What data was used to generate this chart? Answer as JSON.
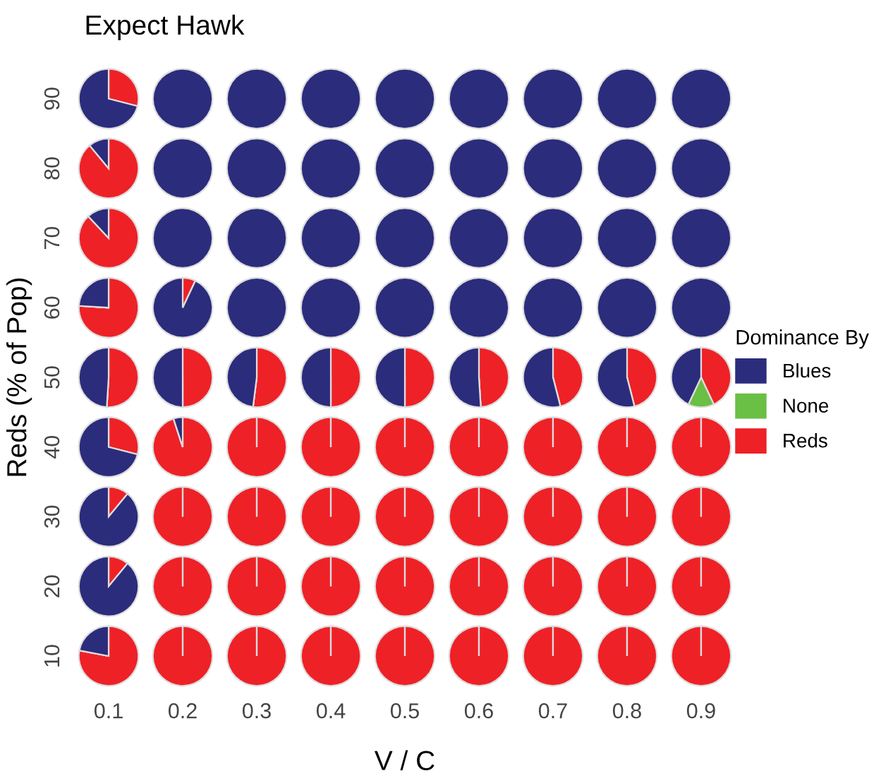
{
  "chart_data": [
    {
      "type": "pie",
      "title": "Expect Hawk",
      "ylabel": "90",
      "annotations": [
        "Reds (% of Pop)"
      ],
      "legend_title": "Dominance By",
      "legend": "right",
      "categories": [
        "Blues",
        "None",
        "Reds"
      ],
      "colors": [
        "#2b2c7c",
        "#6abf45",
        "#ee2127"
      ],
      "series": [
        {
          "values": [
            71,
            0,
            29
          ]
        },
        {
          "values": [
            100,
            0,
            0
          ]
        },
        {
          "values": [
            100,
            0,
            0
          ]
        },
        {
          "values": [
            100,
            0,
            0
          ]
        },
        {
          "values": [
            100,
            0,
            0
          ]
        },
        {
          "values": [
            100,
            0,
            0
          ]
        },
        {
          "values": [
            100,
            0,
            0
          ]
        },
        {
          "values": [
            100,
            0,
            0
          ]
        },
        {
          "values": [
            100,
            0,
            0
          ]
        }
      ]
    },
    {
      "type": "pie",
      "ylabel": "80",
      "categories": [
        null,
        null,
        null
      ],
      "colors": [
        "#2b2c7c",
        "#6abf45",
        "#ee2127"
      ],
      "series": [
        {
          "values": [
            11,
            0,
            89
          ]
        },
        {
          "values": [
            100,
            0,
            0
          ]
        },
        {
          "values": [
            100,
            0,
            0
          ]
        },
        {
          "values": [
            100,
            0,
            0
          ]
        },
        {
          "values": [
            100,
            0,
            0
          ]
        },
        {
          "values": [
            100,
            0,
            0
          ]
        },
        {
          "values": [
            100,
            0,
            0
          ]
        },
        {
          "values": [
            100,
            0,
            0
          ]
        },
        {
          "values": [
            100,
            0,
            0
          ]
        }
      ]
    },
    {
      "type": "pie",
      "ylabel": "70",
      "categories": [
        null,
        null,
        null
      ],
      "colors": [
        "#2b2c7c",
        "#6abf45",
        "#ee2127"
      ],
      "series": [
        {
          "values": [
            12,
            0,
            88
          ]
        },
        {
          "values": [
            100,
            0,
            0
          ]
        },
        {
          "values": [
            100,
            0,
            0
          ]
        },
        {
          "values": [
            100,
            0,
            0
          ]
        },
        {
          "values": [
            100,
            0,
            0
          ]
        },
        {
          "values": [
            100,
            0,
            0
          ]
        },
        {
          "values": [
            100,
            0,
            0
          ]
        },
        {
          "values": [
            100,
            0,
            0
          ]
        },
        {
          "values": [
            100,
            0,
            0
          ]
        }
      ]
    },
    {
      "type": "pie",
      "ylabel": "60",
      "categories": [
        null,
        null,
        null
      ],
      "colors": [
        "#2b2c7c",
        "#6abf45",
        "#ee2127"
      ],
      "series": [
        {
          "values": [
            24,
            0,
            76
          ]
        },
        {
          "values": [
            93,
            0,
            7
          ]
        },
        {
          "values": [
            100,
            0,
            0
          ]
        },
        {
          "values": [
            100,
            0,
            0
          ]
        },
        {
          "values": [
            100,
            0,
            0
          ]
        },
        {
          "values": [
            100,
            0,
            0
          ]
        },
        {
          "values": [
            100,
            0,
            0
          ]
        },
        {
          "values": [
            100,
            0,
            0
          ]
        },
        {
          "values": [
            100,
            0,
            0
          ]
        }
      ]
    },
    {
      "type": "pie",
      "ylabel": "50",
      "categories": [
        null,
        null,
        null
      ],
      "colors": [
        "#2b2c7c",
        "#6abf45",
        "#ee2127"
      ],
      "series": [
        {
          "values": [
            49,
            0,
            51
          ]
        },
        {
          "values": [
            50,
            0,
            50
          ]
        },
        {
          "values": [
            48,
            0,
            52
          ]
        },
        {
          "values": [
            50,
            0,
            50
          ]
        },
        {
          "values": [
            50,
            0,
            50
          ]
        },
        {
          "values": [
            51,
            0,
            49
          ]
        },
        {
          "values": [
            54,
            0,
            46
          ]
        },
        {
          "values": [
            54,
            0,
            46
          ]
        },
        {
          "values": [
            43,
            14,
            43
          ]
        }
      ]
    },
    {
      "type": "pie",
      "ylabel": "40",
      "categories": [
        null,
        null,
        null
      ],
      "colors": [
        "#2b2c7c",
        "#6abf45",
        "#ee2127"
      ],
      "series": [
        {
          "values": [
            71,
            0,
            29
          ]
        },
        {
          "values": [
            5,
            0,
            95
          ]
        },
        {
          "values": [
            0,
            0,
            100
          ]
        },
        {
          "values": [
            0,
            0,
            100
          ]
        },
        {
          "values": [
            0,
            0,
            100
          ]
        },
        {
          "values": [
            0,
            0,
            100
          ]
        },
        {
          "values": [
            0,
            0,
            100
          ]
        },
        {
          "values": [
            0,
            0,
            100
          ]
        },
        {
          "values": [
            0,
            0,
            100
          ]
        }
      ]
    },
    {
      "type": "pie",
      "ylabel": "30",
      "categories": [
        null,
        null,
        null
      ],
      "colors": [
        "#2b2c7c",
        "#6abf45",
        "#ee2127"
      ],
      "series": [
        {
          "values": [
            89,
            0,
            11
          ]
        },
        {
          "values": [
            0,
            0,
            100
          ]
        },
        {
          "values": [
            0,
            0,
            100
          ]
        },
        {
          "values": [
            0,
            0,
            100
          ]
        },
        {
          "values": [
            0,
            0,
            100
          ]
        },
        {
          "values": [
            0,
            0,
            100
          ]
        },
        {
          "values": [
            0,
            0,
            100
          ]
        },
        {
          "values": [
            0,
            0,
            100
          ]
        },
        {
          "values": [
            0,
            0,
            100
          ]
        }
      ]
    },
    {
      "type": "pie",
      "ylabel": "20",
      "categories": [
        null,
        null,
        null
      ],
      "colors": [
        "#2b2c7c",
        "#6abf45",
        "#ee2127"
      ],
      "series": [
        {
          "values": [
            89,
            0,
            11
          ]
        },
        {
          "values": [
            0,
            0,
            100
          ]
        },
        {
          "values": [
            0,
            0,
            100
          ]
        },
        {
          "values": [
            0,
            0,
            100
          ]
        },
        {
          "values": [
            0,
            0,
            100
          ]
        },
        {
          "values": [
            0,
            0,
            100
          ]
        },
        {
          "values": [
            0,
            0,
            100
          ]
        },
        {
          "values": [
            0,
            0,
            100
          ]
        },
        {
          "values": [
            0,
            0,
            100
          ]
        }
      ]
    },
    {
      "type": "pie",
      "ylabel": "10",
      "xlabel": "V / C",
      "categories": [
        null,
        null,
        null
      ],
      "colors": [
        "#2b2c7c",
        "#6abf45",
        "#ee2127"
      ],
      "series": [
        {
          "name": "0.1",
          "values": [
            22,
            0,
            78
          ]
        },
        {
          "name": "0.2",
          "values": [
            0,
            0,
            100
          ]
        },
        {
          "name": "0.3",
          "values": [
            0,
            0,
            100
          ]
        },
        {
          "name": "0.4",
          "values": [
            0,
            0,
            100
          ]
        },
        {
          "name": "0.5",
          "values": [
            0,
            0,
            100
          ]
        },
        {
          "name": "0.6",
          "values": [
            0,
            0,
            100
          ]
        },
        {
          "name": "0.7",
          "values": [
            0,
            0,
            100
          ]
        },
        {
          "name": "0.8",
          "values": [
            0,
            0,
            100
          ]
        },
        {
          "name": "0.9",
          "values": [
            0,
            0,
            100
          ]
        }
      ]
    }
  ]
}
